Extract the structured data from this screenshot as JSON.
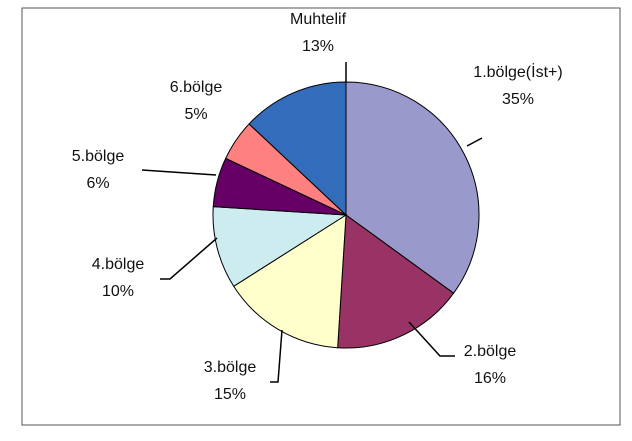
{
  "chart_data": {
    "type": "pie",
    "categories": [
      "1.bölge(İst+)",
      "2.bölge",
      "3.bölge",
      "4.bölge",
      "5.bölge",
      "6.bölge",
      "Muhtelif"
    ],
    "values": [
      35,
      16,
      15,
      10,
      6,
      5,
      13
    ],
    "value_labels": [
      "35%",
      "16%",
      "15%",
      "10%",
      "6%",
      "5%",
      "13%"
    ],
    "colors": [
      "#9999cc",
      "#993366",
      "#ffffcc",
      "#ccecf0",
      "#660066",
      "#ff8080",
      "#336cbb"
    ]
  }
}
